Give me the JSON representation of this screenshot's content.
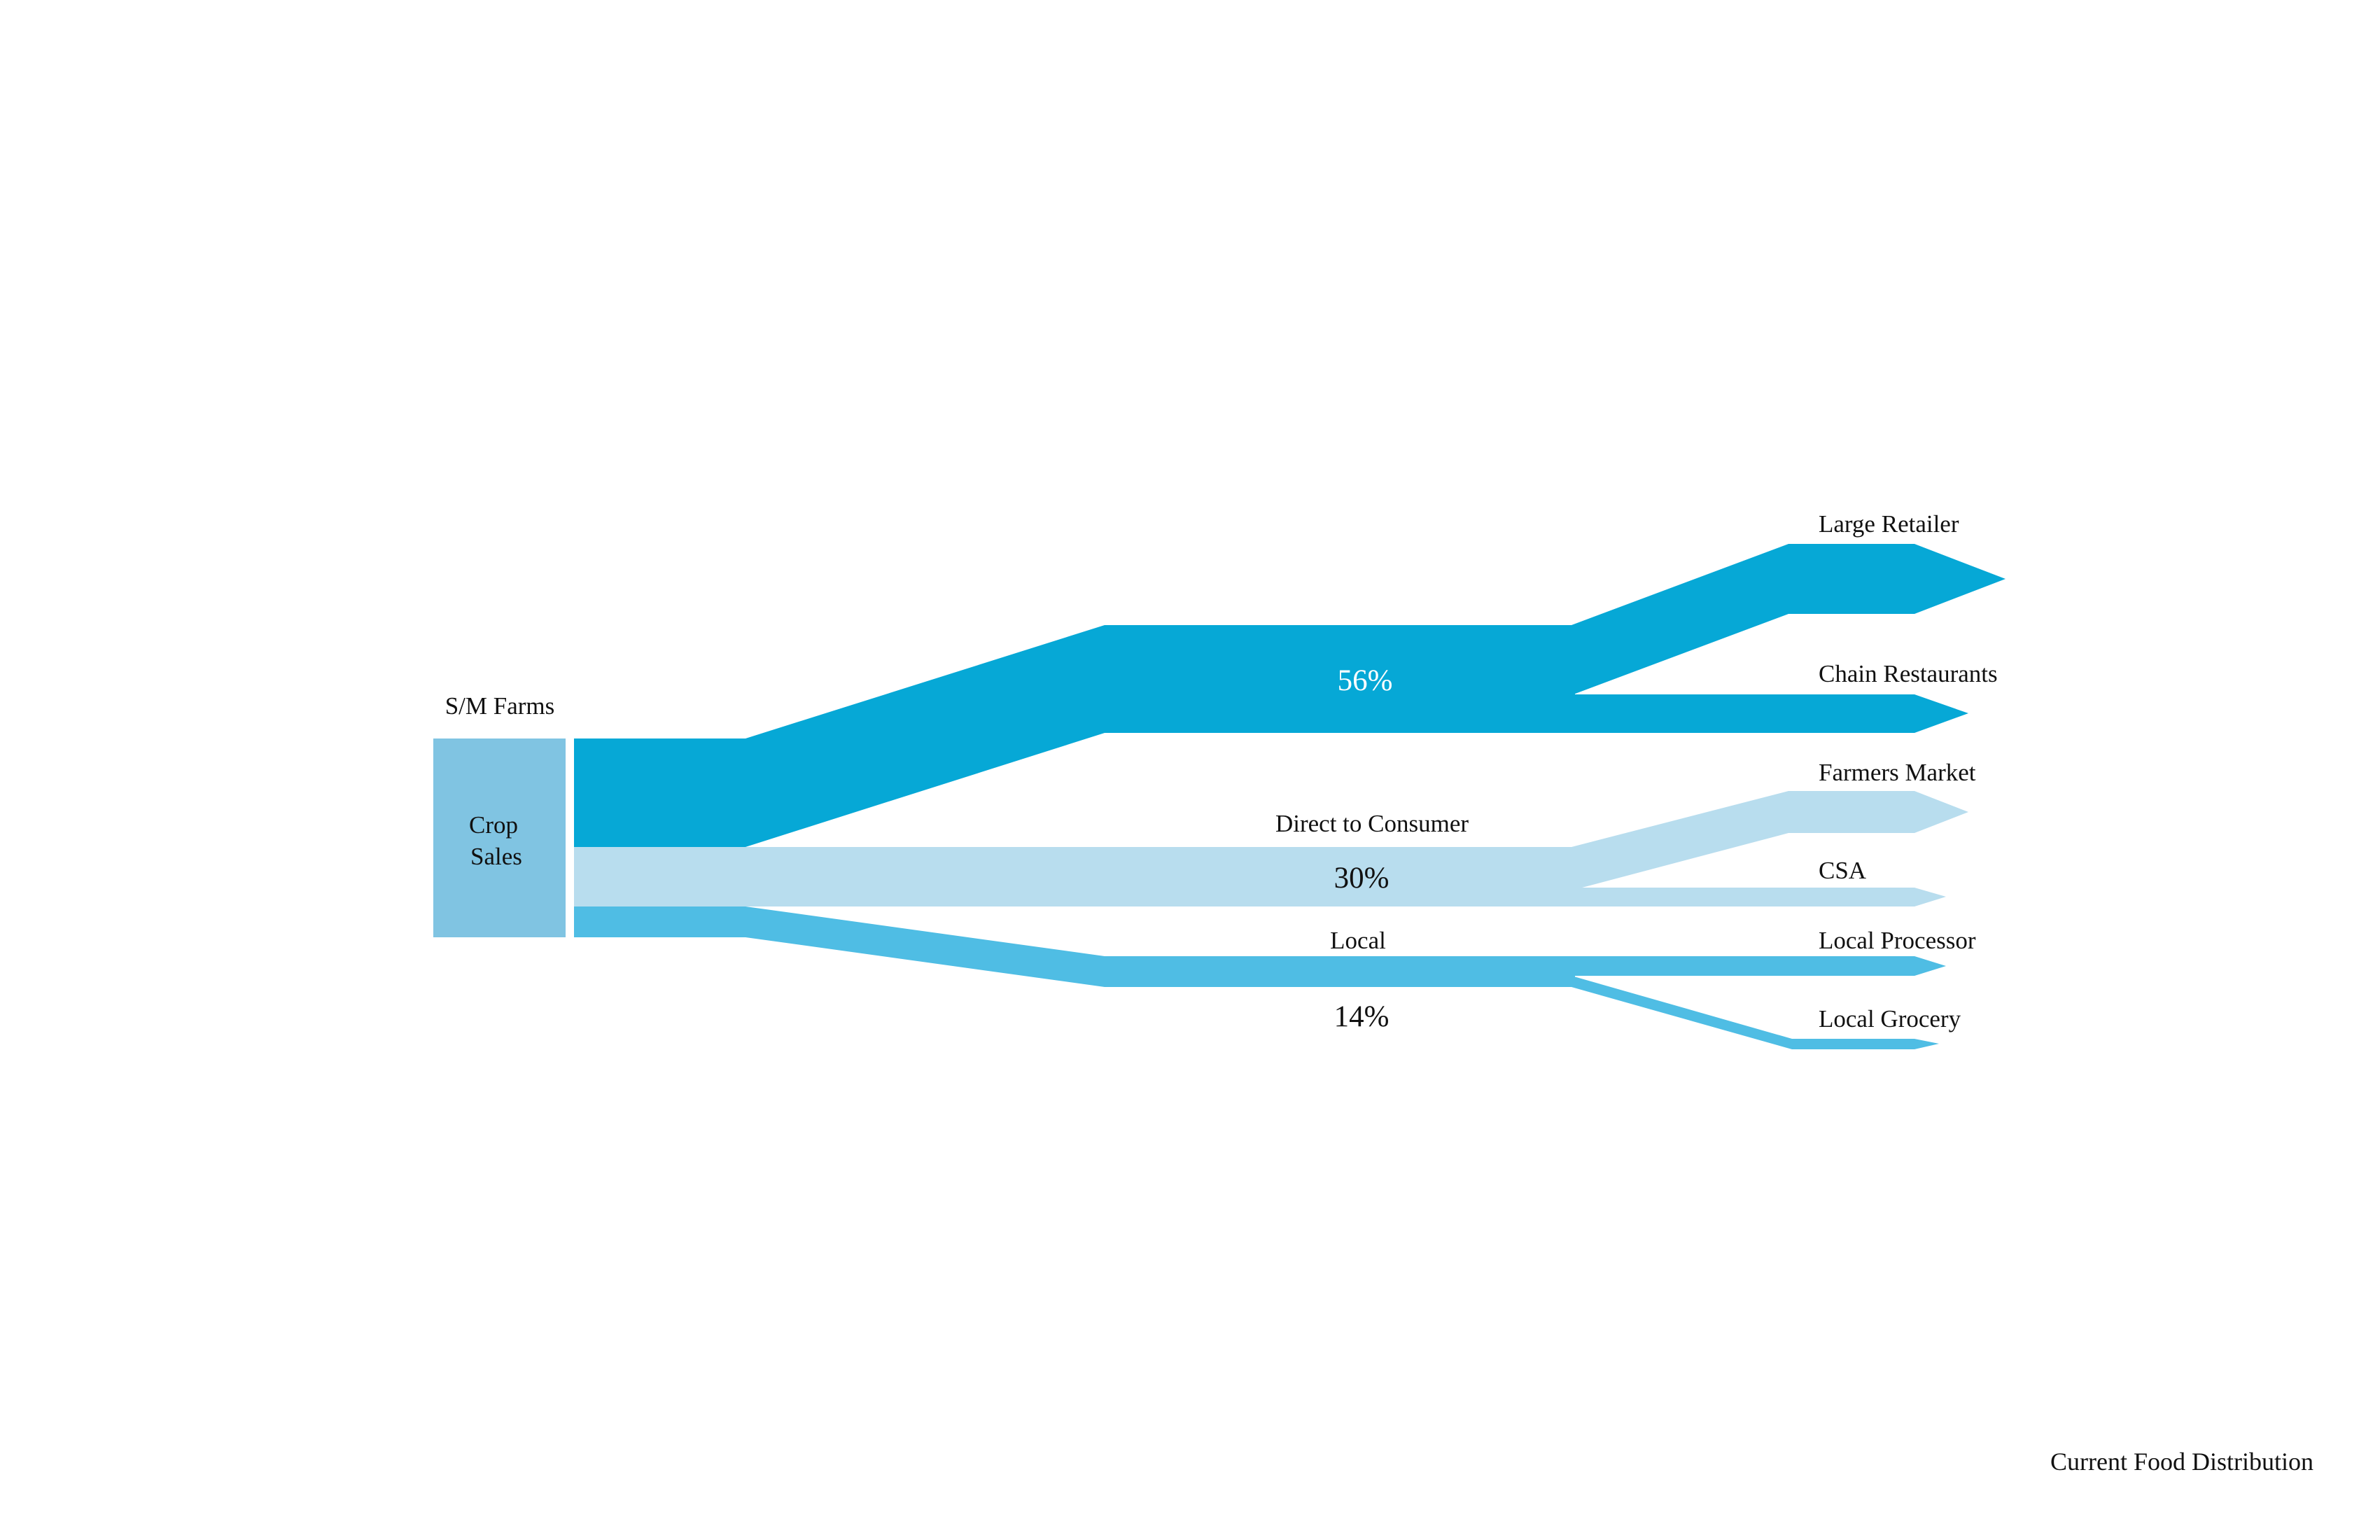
{
  "source": {
    "group_label": "S/M Farms",
    "node_label_line1": "Crop",
    "node_label_line2": "Sales",
    "color": "#80c4e2"
  },
  "flows": [
    {
      "name": "56%",
      "share_percent": 56,
      "color": "#06a8d6",
      "label_color": "#ffffff",
      "destinations": [
        {
          "label": "Large Retailer"
        },
        {
          "label": "Chain Restaurants"
        }
      ]
    },
    {
      "name": "Direct to Consumer",
      "share_percent": 30,
      "percent_label": "30%",
      "color": "#b8ddee",
      "label_color": "#111111",
      "destinations": [
        {
          "label": "Farmers Market"
        },
        {
          "label": "CSA"
        }
      ]
    },
    {
      "name": "Local",
      "share_percent": 14,
      "percent_label": "14%",
      "color": "#4fbde4",
      "label_color": "#111111",
      "destinations": [
        {
          "label": "Local Processor"
        },
        {
          "label": "Local Grocery"
        }
      ]
    }
  ],
  "caption": "Current Food Distribution"
}
